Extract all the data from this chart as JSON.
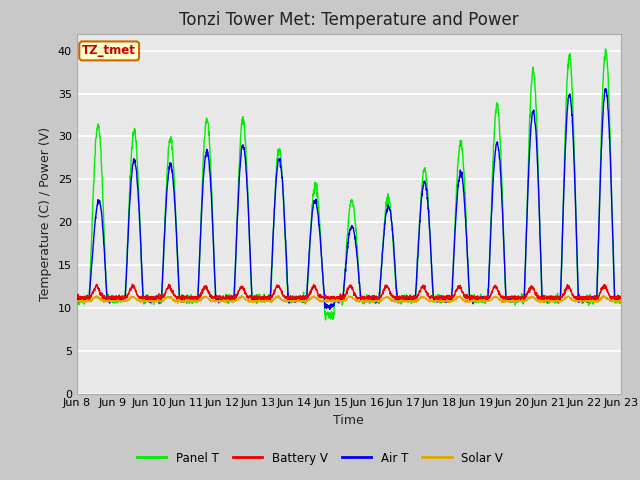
{
  "title": "Tonzi Tower Met: Temperature and Power",
  "xlabel": "Time",
  "ylabel": "Temperature (C) / Power (V)",
  "ylim": [
    0,
    42
  ],
  "yticks": [
    0,
    5,
    10,
    15,
    20,
    25,
    30,
    35,
    40
  ],
  "xtick_labels": [
    "Jun 8",
    "Jun 9",
    "Jun 10",
    "Jun 11",
    "Jun 12",
    "Jun 13",
    "Jun 14",
    "Jun 15",
    "Jun 16",
    "Jun 17",
    "Jun 18",
    "Jun 19",
    "Jun 20",
    "Jun 21",
    "Jun 22",
    "Jun 23"
  ],
  "legend_label": "TZ_tmet",
  "legend_entries": [
    "Panel T",
    "Battery V",
    "Air T",
    "Solar V"
  ],
  "line_colors": [
    "#00ee00",
    "#ee0000",
    "#0000ee",
    "#ddaa00"
  ],
  "fig_bg": "#c8c8c8",
  "plot_bg": "#e8e8e8",
  "grid_color": "#ffffff",
  "title_fontsize": 12,
  "label_fontsize": 9,
  "tick_fontsize": 8
}
